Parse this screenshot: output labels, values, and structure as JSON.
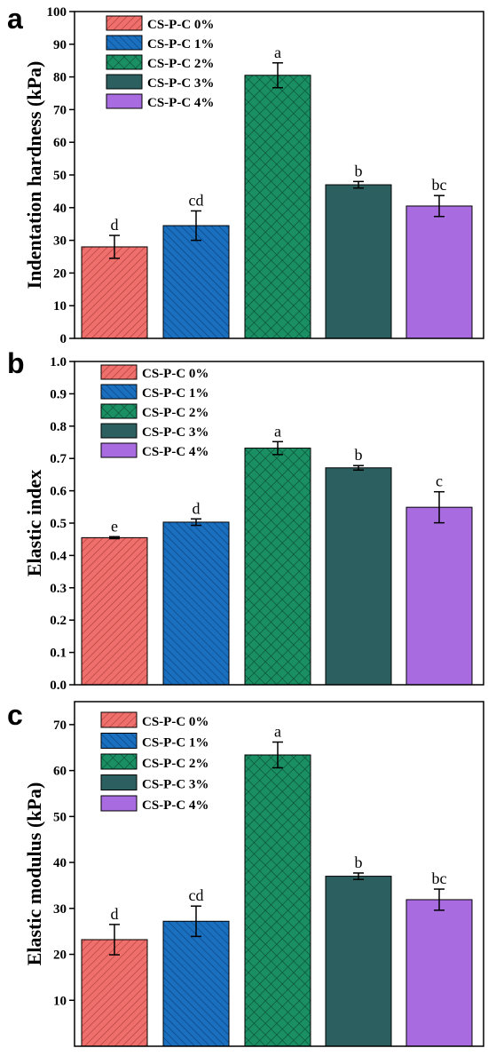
{
  "figure": {
    "panels": [
      "a",
      "b",
      "c"
    ]
  },
  "pattern_colors": {
    "red_bg": "#ef6f6c",
    "red_line": "#a83a36",
    "blue_bg": "#1a6fbf",
    "blue_line": "#0a3f78",
    "green_bg": "#1a8f64",
    "green_line": "#0b4a32",
    "teal": "#2c5f5f",
    "purple": "#a86ce0"
  },
  "chart_data": [
    {
      "type": "bar",
      "panel_letter": "a",
      "ylabel": "Indentation hardness (kPa)",
      "ylim": [
        0,
        100
      ],
      "yticks": [
        0,
        10,
        20,
        30,
        40,
        50,
        60,
        70,
        80,
        90,
        100
      ],
      "legend_position": "top-left",
      "series": [
        {
          "name": "CS-P-C 0%",
          "value": 28,
          "error": 3.5,
          "label": "d",
          "style": "red"
        },
        {
          "name": "CS-P-C 1%",
          "value": 34.5,
          "error": 4.5,
          "label": "cd",
          "style": "blue"
        },
        {
          "name": "CS-P-C 2%",
          "value": 80.5,
          "error": 3.8,
          "label": "a",
          "style": "green"
        },
        {
          "name": "CS-P-C 3%",
          "value": 47,
          "error": 1.0,
          "label": "b",
          "style": "teal"
        },
        {
          "name": "CS-P-C 4%",
          "value": 40.5,
          "error": 3.2,
          "label": "bc",
          "style": "purple"
        }
      ]
    },
    {
      "type": "bar",
      "panel_letter": "b",
      "ylabel": "Elastic index",
      "ylim": [
        0,
        1.0
      ],
      "yticks": [
        "0.0",
        "0.1",
        "0.2",
        "0.3",
        "0.4",
        "0.5",
        "0.6",
        "0.7",
        "0.8",
        "0.9",
        "1.0"
      ],
      "legend_position": "top-left",
      "series": [
        {
          "name": "CS-P-C 0%",
          "value": 0.455,
          "error": 0.003,
          "label": "e",
          "style": "red"
        },
        {
          "name": "CS-P-C 1%",
          "value": 0.503,
          "error": 0.01,
          "label": "d",
          "style": "blue"
        },
        {
          "name": "CS-P-C 2%",
          "value": 0.732,
          "error": 0.02,
          "label": "a",
          "style": "green"
        },
        {
          "name": "CS-P-C 3%",
          "value": 0.671,
          "error": 0.007,
          "label": "b",
          "style": "teal"
        },
        {
          "name": "CS-P-C 4%",
          "value": 0.549,
          "error": 0.048,
          "label": "c",
          "style": "purple"
        }
      ]
    },
    {
      "type": "bar",
      "panel_letter": "c",
      "ylabel": "Elastic modulus  (kPa)",
      "ylim": [
        0,
        75
      ],
      "yticks": [
        10,
        20,
        30,
        40,
        50,
        60,
        70
      ],
      "legend_position": "top-left",
      "series": [
        {
          "name": "CS-P-C 0%",
          "value": 23.2,
          "error": 3.3,
          "label": "d",
          "style": "red"
        },
        {
          "name": "CS-P-C 1%",
          "value": 27.2,
          "error": 3.3,
          "label": "cd",
          "style": "blue"
        },
        {
          "name": "CS-P-C 2%",
          "value": 63.4,
          "error": 2.8,
          "label": "a",
          "style": "green"
        },
        {
          "name": "CS-P-C 3%",
          "value": 37.0,
          "error": 0.7,
          "label": "b",
          "style": "teal"
        },
        {
          "name": "CS-P-C 4%",
          "value": 31.9,
          "error": 2.3,
          "label": "bc",
          "style": "purple"
        }
      ]
    }
  ]
}
